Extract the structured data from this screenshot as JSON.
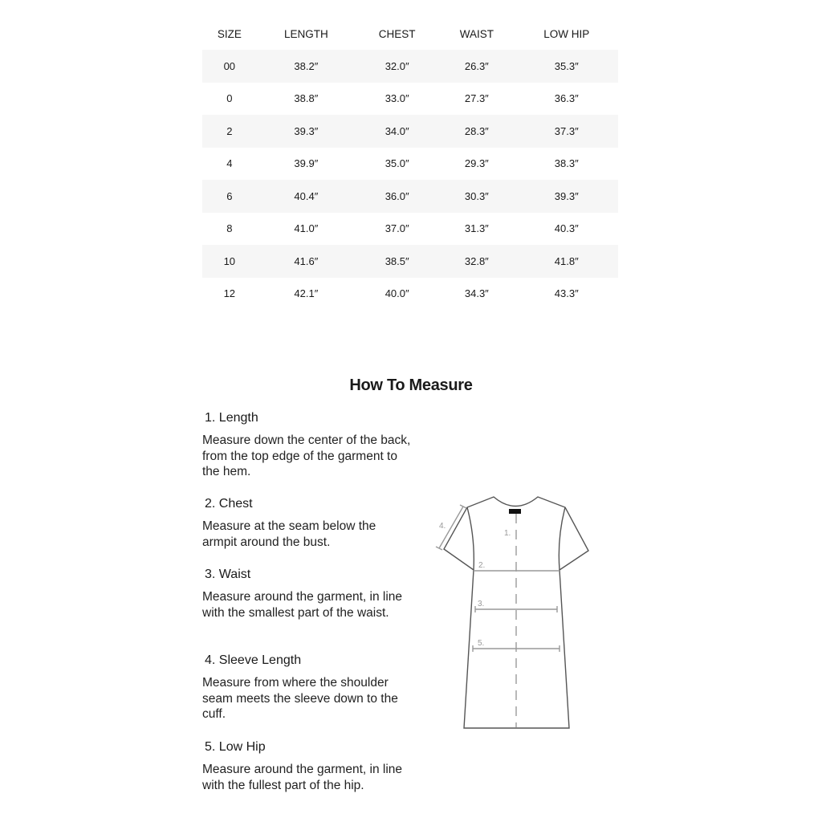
{
  "table": {
    "headers": [
      "SIZE",
      "LENGTH",
      "CHEST",
      "WAIST",
      "LOW HIP"
    ],
    "rows": [
      [
        "00",
        "38.2″",
        "32.0″",
        "26.3″",
        "35.3″"
      ],
      [
        "0",
        "38.8″",
        "33.0″",
        "27.3″",
        "36.3″"
      ],
      [
        "2",
        "39.3″",
        "34.0″",
        "28.3″",
        "37.3″"
      ],
      [
        "4",
        "39.9″",
        "35.0″",
        "29.3″",
        "38.3″"
      ],
      [
        "6",
        "40.4″",
        "36.0″",
        "30.3″",
        "39.3″"
      ],
      [
        "8",
        "41.0″",
        "37.0″",
        "31.3″",
        "40.3″"
      ],
      [
        "10",
        "41.6″",
        "38.5″",
        "32.8″",
        "41.8″"
      ],
      [
        "12",
        "42.1″",
        "40.0″",
        "34.3″",
        "43.3″"
      ]
    ]
  },
  "how_to": {
    "title": "How To Measure",
    "steps": [
      {
        "title": "1. Length",
        "text": "Measure down the center of the back, from the top edge of the garment to the hem."
      },
      {
        "title": "2. Chest",
        "text": "Measure at the seam below the armpit around the bust."
      },
      {
        "title": "3. Waist",
        "text": "Measure around the garment, in line with the smallest part of the waist."
      },
      {
        "title": "4. Sleeve Length",
        "text": "Measure from where the shoulder seam meets the sleeve down to the cuff."
      },
      {
        "title": "5. Low Hip",
        "text": "Measure around the garment, in line with the fullest part of the hip."
      }
    ]
  },
  "diagram": {
    "labels": [
      "1.",
      "2.",
      "3.",
      "4.",
      "5."
    ]
  }
}
